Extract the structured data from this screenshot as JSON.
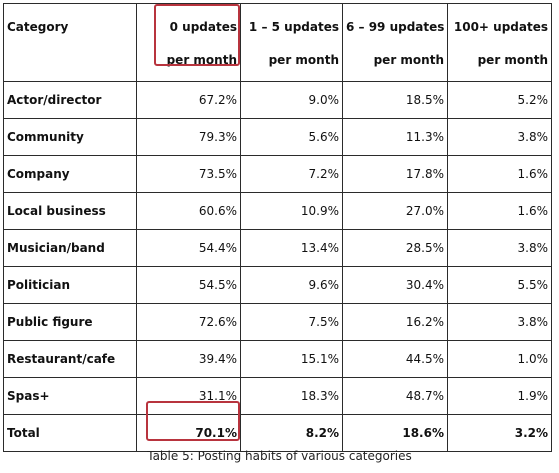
{
  "table": {
    "headers": [
      {
        "line1": "Category",
        "line2": ""
      },
      {
        "line1": "0 updates",
        "line2": "per month"
      },
      {
        "line1": "1 – 5 updates",
        "line2": "per month"
      },
      {
        "line1": "6 – 99 updates",
        "line2": "per month"
      },
      {
        "line1": "100+ updates",
        "line2": "per month"
      }
    ],
    "rows": [
      {
        "category": "Actor/director",
        "values": [
          "67.2%",
          "9.0%",
          "18.5%",
          "5.2%"
        ]
      },
      {
        "category": "Community",
        "values": [
          "79.3%",
          "5.6%",
          "11.3%",
          "3.8%"
        ]
      },
      {
        "category": "Company",
        "values": [
          "73.5%",
          "7.2%",
          "17.8%",
          "1.6%"
        ]
      },
      {
        "category": "Local business",
        "values": [
          "60.6%",
          "10.9%",
          "27.0%",
          "1.6%"
        ]
      },
      {
        "category": "Musician/band",
        "values": [
          "54.4%",
          "13.4%",
          "28.5%",
          "3.8%"
        ]
      },
      {
        "category": "Politician",
        "values": [
          "54.5%",
          "9.6%",
          "30.4%",
          "5.5%"
        ]
      },
      {
        "category": "Public figure",
        "values": [
          "72.6%",
          "7.5%",
          "16.2%",
          "3.8%"
        ]
      },
      {
        "category": "Restaurant/cafe",
        "values": [
          "39.4%",
          "15.1%",
          "44.5%",
          "1.0%"
        ]
      },
      {
        "category": "Spas+",
        "values": [
          "31.1%",
          "18.3%",
          "48.7%",
          "1.9%"
        ]
      }
    ],
    "total": {
      "category": "Total",
      "values": [
        "70.1%",
        "8.2%",
        "18.6%",
        "3.2%"
      ]
    }
  },
  "caption": "Table 5: Posting habits of various categories",
  "colors": {
    "highlight": "#b8343e",
    "border": "#2b2b2b",
    "text": "#111111"
  }
}
